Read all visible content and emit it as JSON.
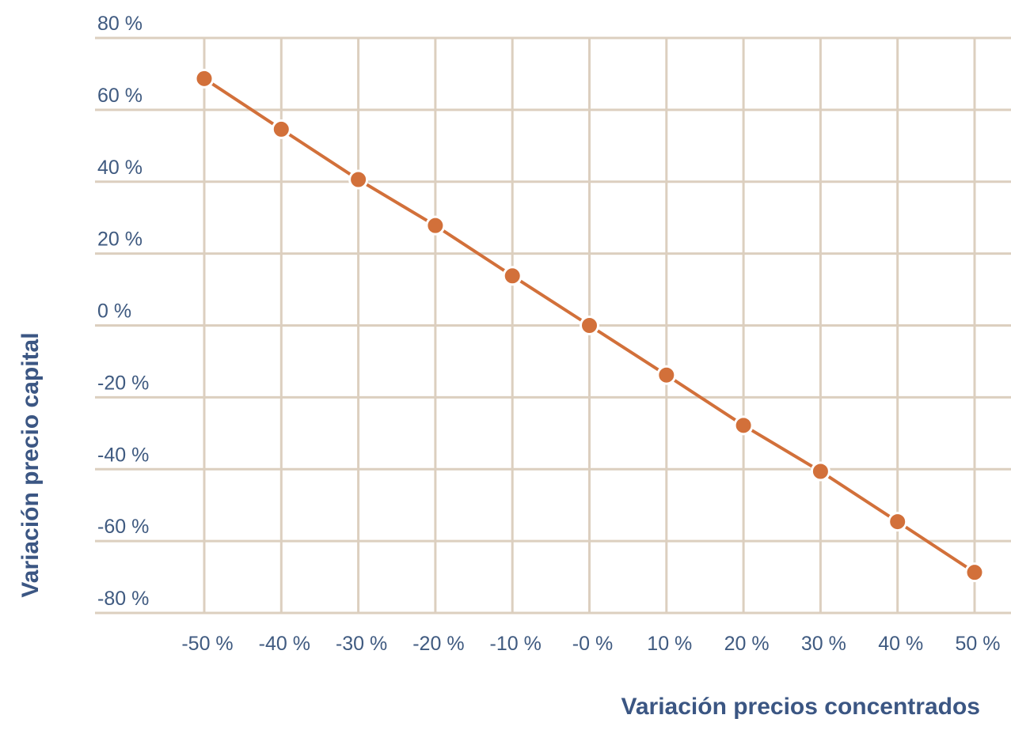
{
  "chart_data": {
    "type": "line",
    "title": "",
    "xlabel": "Variación precios concentrados",
    "ylabel": "Variación precio capital",
    "x_categories": [
      "-50 %",
      "-40 %",
      "-30 %",
      "-20 %",
      "-10 %",
      "-0 %",
      "10 %",
      "20 %",
      "30 %",
      "40 %",
      "50 %"
    ],
    "x_values": [
      -50,
      -40,
      -30,
      -20,
      -10,
      0,
      10,
      20,
      30,
      40,
      50
    ],
    "y_ticks": [
      "80 %",
      "60 %",
      "40 %",
      "20 %",
      "0 %",
      "-20 %",
      "-40 %",
      "-60 %",
      "-80 %"
    ],
    "y_tick_values": [
      80,
      60,
      40,
      20,
      0,
      -20,
      -40,
      -60,
      -80
    ],
    "ylim": [
      -80,
      80
    ],
    "series": [
      {
        "values": [
          68.7,
          54.6,
          40.6,
          27.8,
          13.8,
          0,
          -13.8,
          -27.8,
          -40.6,
          -54.6,
          -68.7
        ]
      }
    ],
    "grid": true,
    "colors": {
      "line": "#d2703a",
      "grid": "#dccfbf",
      "text": "#3f5a80",
      "axis_title": "#3b5683"
    }
  }
}
